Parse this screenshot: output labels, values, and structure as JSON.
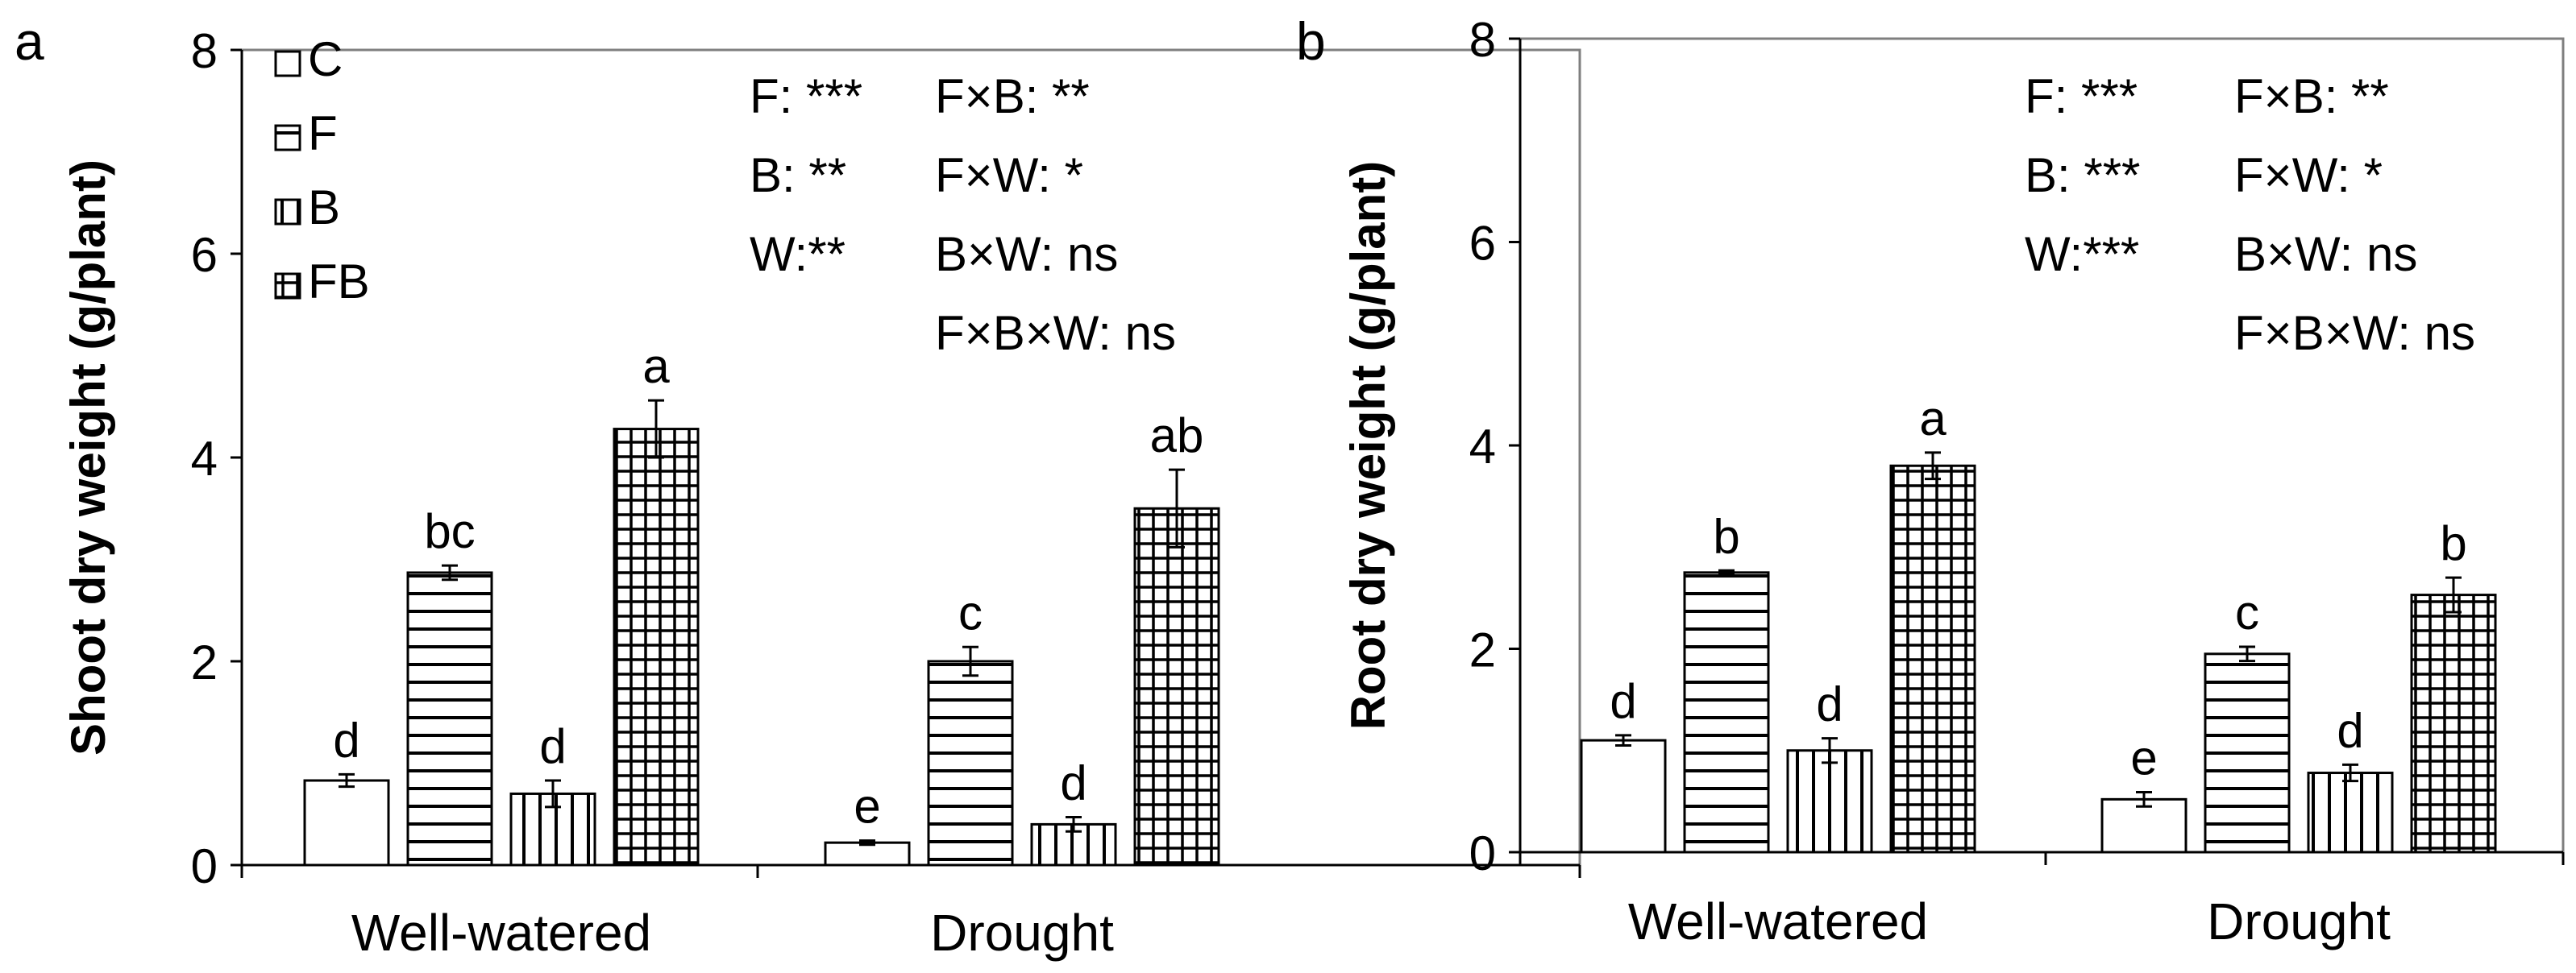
{
  "chart_data": [
    {
      "panel_label": "a",
      "type": "bar",
      "ylabel": "Shoot dry weight (g/plant)",
      "ylim": [
        0,
        8
      ],
      "yticks": [
        "0",
        "2",
        "4",
        "6",
        "8"
      ],
      "categories": [
        "Well-watered",
        "Drought"
      ],
      "series": [
        {
          "name": "C",
          "values": [
            0.83,
            0.22
          ],
          "errors": [
            0.06,
            0.02
          ],
          "letters": [
            "d",
            "e"
          ]
        },
        {
          "name": "F",
          "values": [
            2.87,
            2.0
          ],
          "errors": [
            0.07,
            0.14
          ],
          "letters": [
            "bc",
            "c"
          ]
        },
        {
          "name": "B",
          "values": [
            0.7,
            0.4
          ],
          "errors": [
            0.13,
            0.07
          ],
          "letters": [
            "d",
            "d"
          ]
        },
        {
          "name": "FB",
          "values": [
            4.28,
            3.5
          ],
          "errors": [
            0.28,
            0.38
          ],
          "letters": [
            "a",
            "ab"
          ]
        }
      ],
      "stats": [
        [
          "F: ***",
          "F×B: **"
        ],
        [
          "B: **",
          "F×W: *"
        ],
        [
          "W:**",
          "B×W: ns"
        ],
        [
          "",
          "F×B×W: ns"
        ]
      ]
    },
    {
      "panel_label": "b",
      "type": "bar",
      "ylabel": "Root dry weight (g/plant)",
      "ylim": [
        0,
        8
      ],
      "yticks": [
        "0",
        "2",
        "4",
        "6",
        "8"
      ],
      "categories": [
        "Well-watered",
        "Drought"
      ],
      "series": [
        {
          "name": "C",
          "values": [
            1.1,
            0.52
          ],
          "errors": [
            0.05,
            0.07
          ],
          "letters": [
            "d",
            "e"
          ]
        },
        {
          "name": "F",
          "values": [
            2.75,
            1.95
          ],
          "errors": [
            0.02,
            0.07
          ],
          "letters": [
            "b",
            "c"
          ]
        },
        {
          "name": "B",
          "values": [
            1.0,
            0.78
          ],
          "errors": [
            0.12,
            0.08
          ],
          "letters": [
            "d",
            "d"
          ]
        },
        {
          "name": "FB",
          "values": [
            3.8,
            2.53
          ],
          "errors": [
            0.13,
            0.17
          ],
          "letters": [
            "a",
            "b"
          ]
        }
      ],
      "stats": [
        [
          "F: ***",
          "F×B: **"
        ],
        [
          "B: ***",
          "F×W: *"
        ],
        [
          "W:***",
          "B×W: ns"
        ],
        [
          "",
          "F×B×W: ns"
        ]
      ]
    }
  ]
}
